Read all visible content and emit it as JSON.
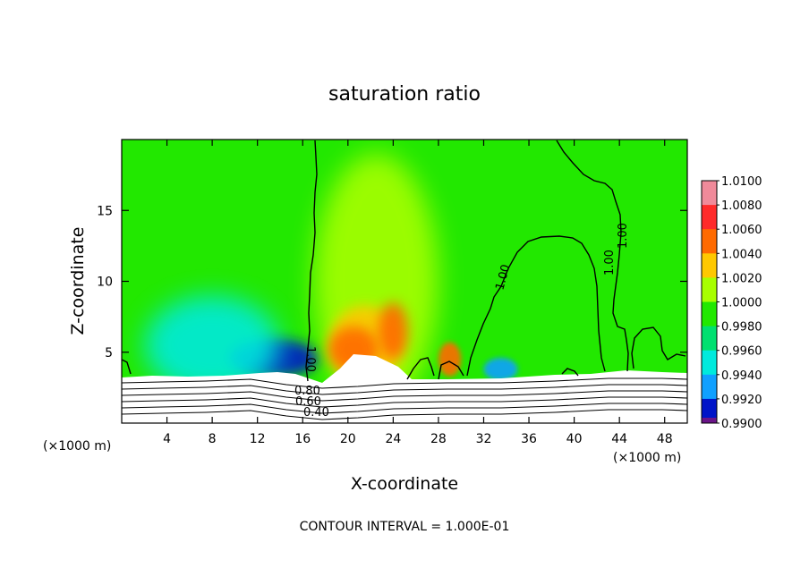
{
  "chart_data": {
    "type": "heatmap",
    "title": "saturation ratio",
    "xlabel": "X-coordinate",
    "ylabel": "Z-coordinate",
    "x_unit": "(×1000 m)",
    "xlim": [
      0,
      50
    ],
    "ylim": [
      0,
      20
    ],
    "x_ticks": [
      "4",
      "8",
      "12",
      "16",
      "20",
      "24",
      "28",
      "32",
      "36",
      "40",
      "44",
      "48"
    ],
    "y_ticks": [
      "5",
      "10",
      "15"
    ],
    "x_tick_values": [
      4,
      8,
      12,
      16,
      20,
      24,
      28,
      32,
      36,
      40,
      44,
      48
    ],
    "y_tick_values": [
      5,
      10,
      15
    ],
    "footer": "CONTOUR INTERVAL = 1.000E-01",
    "colorbar": {
      "labels": [
        "1.0100",
        "1.0080",
        "1.0060",
        "1.0040",
        "1.0020",
        "1.0000",
        "0.9980",
        "0.9960",
        "0.9940",
        "0.9920",
        "0.9900"
      ],
      "colors": [
        "#f08a9a",
        "#ff2a2a",
        "#ff6a00",
        "#ffc800",
        "#a8ff00",
        "#22e800",
        "#00e070",
        "#00eadd",
        "#10a0ff",
        "#0014c8",
        "#6a1488"
      ]
    },
    "contour_labels": [
      "1.00",
      "1.00",
      "1.00",
      "1.00",
      "0.80",
      "0.60",
      "0.40"
    ],
    "features": [
      {
        "kind": "dry",
        "x": 13.5,
        "z": 4.6,
        "rx": 4.0,
        "rz": 1.3,
        "value": 0.992
      },
      {
        "kind": "dry",
        "x": 8.0,
        "z": 5.5,
        "rx": 6.0,
        "rz": 3.5,
        "value": 0.997
      },
      {
        "kind": "dry",
        "x": 33.5,
        "z": 3.8,
        "rx": 1.5,
        "rz": 0.8,
        "value": 0.994
      },
      {
        "kind": "moist",
        "x": 22.5,
        "z": 10.0,
        "rx": 5.5,
        "rz": 9.0,
        "value": 1.002
      },
      {
        "kind": "moist",
        "x": 21.5,
        "z": 5.5,
        "rx": 3.2,
        "rz": 2.8,
        "value": 1.004
      },
      {
        "kind": "moist",
        "x": 20.5,
        "z": 5.2,
        "rx": 2.2,
        "rz": 1.6,
        "value": 1.007
      },
      {
        "kind": "moist",
        "x": 24.0,
        "z": 6.5,
        "rx": 1.3,
        "rz": 2.0,
        "value": 1.006
      },
      {
        "kind": "moist",
        "x": 29.0,
        "z": 4.5,
        "rx": 1.0,
        "rz": 1.2,
        "value": 1.006
      }
    ]
  }
}
